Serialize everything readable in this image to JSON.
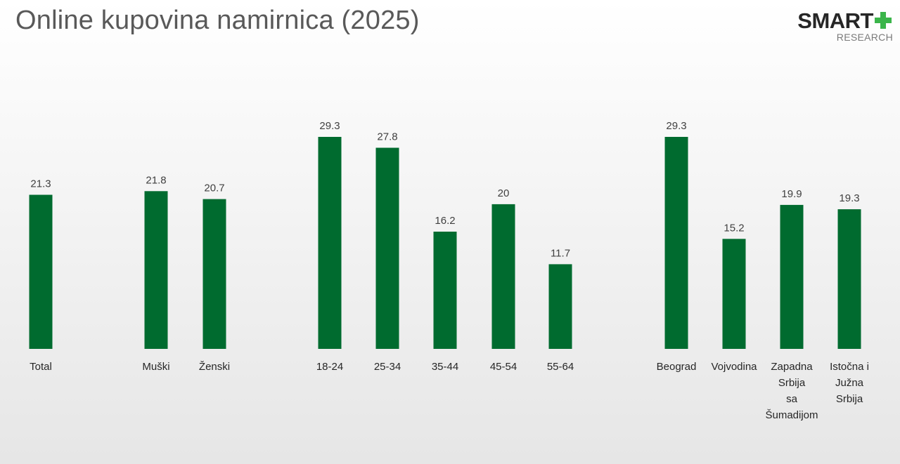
{
  "header": {
    "title": "Online kupovina namirnica (2025)",
    "logo_brand": "SMART",
    "logo_sub": "RESEARCH",
    "logo_icon": "plus-icon",
    "logo_color": "#3bb54a"
  },
  "chart_data": {
    "type": "bar",
    "title": "Online kupovina namirnica (2025)",
    "xlabel": "",
    "ylabel": "",
    "ylim": [
      0,
      29.3
    ],
    "grid": false,
    "legend": "none",
    "bar_color": "#006b2f",
    "categories": [
      "Total",
      "Muški",
      "Ženski",
      "18-24",
      "25-34",
      "35-44",
      "45-54",
      "55-64",
      "Beograd",
      "Vojvodina",
      "Zapadna Srbija sa Šumadijom",
      "Istočna i Južna Srbija"
    ],
    "category_lines": [
      [
        "Total"
      ],
      [
        "Muški"
      ],
      [
        "Ženski"
      ],
      [
        "18-24"
      ],
      [
        "25-34"
      ],
      [
        "35-44"
      ],
      [
        "45-54"
      ],
      [
        "55-64"
      ],
      [
        "Beograd"
      ],
      [
        "Vojvodina"
      ],
      [
        "Zapadna",
        "Srbija",
        "sa",
        "Šumadijom"
      ],
      [
        "Istočna i",
        "Južna",
        "Srbija"
      ]
    ],
    "values": [
      21.3,
      21.8,
      20.7,
      29.3,
      27.8,
      16.2,
      20,
      11.7,
      29.3,
      15.2,
      19.9,
      19.3
    ],
    "value_labels": [
      "21.3",
      "21.8",
      "20.7",
      "29.3",
      "27.8",
      "16.2",
      "20",
      "11.7",
      "29.3",
      "15.2",
      "19.9",
      "19.3"
    ]
  }
}
